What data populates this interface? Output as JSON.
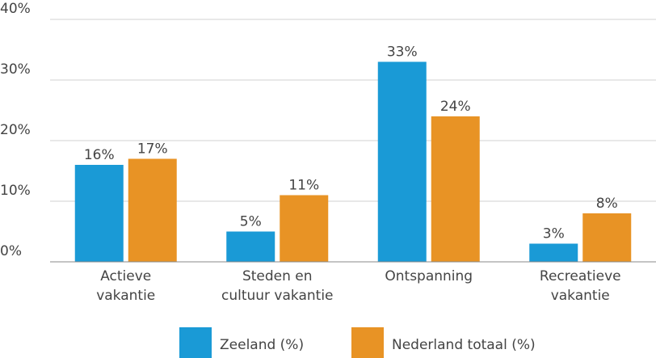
{
  "chart_data": {
    "type": "bar",
    "categories": [
      "Actieve\nvakantie",
      "Steden en\ncultuur vakantie",
      "Ontspanning",
      "Recreatieve\nvakantie"
    ],
    "series": [
      {
        "name": "Zeeland (%)",
        "color": "#1a9ad6",
        "values": [
          16,
          5,
          33,
          3
        ],
        "value_labels": [
          "16%",
          "5%",
          "33%",
          "3%"
        ]
      },
      {
        "name": "Nederland totaal (%)",
        "color": "#e89325",
        "values": [
          17,
          11,
          24,
          8
        ],
        "value_labels": [
          "17%",
          "11%",
          "24%",
          "8%"
        ]
      }
    ],
    "ylim": [
      0,
      40
    ],
    "yticks": [
      {
        "value": 0,
        "label": "0%"
      },
      {
        "value": 10,
        "label": "10%"
      },
      {
        "value": 20,
        "label": "20%"
      },
      {
        "value": 30,
        "label": "30%"
      },
      {
        "value": 40,
        "label": "40%"
      }
    ],
    "grid": true,
    "legend": "bottom"
  }
}
